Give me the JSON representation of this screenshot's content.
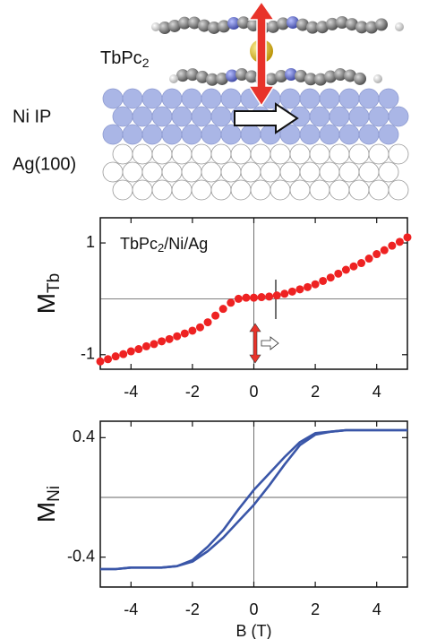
{
  "schematic": {
    "molecule_label": {
      "text": "TbPc",
      "subscript": "2"
    },
    "layer_labels": [
      "Ni IP",
      "Ag(100)"
    ]
  },
  "chart_data": [
    {
      "type": "scatter",
      "annotation": {
        "text": "TbPc",
        "subscript": "2",
        "suffix": "/Ni/Ag"
      },
      "y_label": "M",
      "y_label_subscript": "Tb",
      "color": "#ee2222",
      "x": [
        -5,
        -4.75,
        -4.5,
        -4.25,
        -4,
        -3.75,
        -3.5,
        -3.25,
        -3,
        -2.75,
        -2.5,
        -2.25,
        -2,
        -1.75,
        -1.5,
        -1.25,
        -1,
        -0.75,
        -0.5,
        -0.25,
        0,
        0.25,
        0.5,
        0.75,
        1,
        1.25,
        1.5,
        1.75,
        2,
        2.25,
        2.5,
        2.75,
        3,
        3.25,
        3.5,
        3.75,
        4,
        4.25,
        4.5,
        4.75,
        5
      ],
      "values": [
        -1.12,
        -1.08,
        -1.03,
        -0.99,
        -0.94,
        -0.9,
        -0.85,
        -0.81,
        -0.76,
        -0.72,
        -0.67,
        -0.62,
        -0.57,
        -0.51,
        -0.42,
        -0.3,
        -0.18,
        -0.07,
        0.0,
        0.02,
        0.02,
        0.03,
        0.04,
        0.06,
        0.09,
        0.13,
        0.17,
        0.21,
        0.26,
        0.32,
        0.38,
        0.45,
        0.52,
        0.58,
        0.64,
        0.72,
        0.8,
        0.87,
        0.95,
        1.02,
        1.1
      ],
      "xlim": [
        -5,
        5
      ],
      "ylim": [
        -1.26,
        1.45
      ],
      "xticks": [
        -4,
        -2,
        0,
        2,
        4
      ],
      "yticks": [
        -1,
        1
      ],
      "zero_lines": true
    },
    {
      "type": "line",
      "y_label": "M",
      "y_label_subscript": "Ni",
      "x_label": "B (T)",
      "x": [
        -5,
        -4.5,
        -4,
        -3.5,
        -3,
        -2.5,
        -2,
        -1.5,
        -1,
        -0.5,
        0,
        0.5,
        1,
        1.5,
        2,
        2.5,
        3,
        3.5,
        4,
        4.5,
        5
      ],
      "series": [
        {
          "color": "#3a56a8",
          "values": [
            -0.48,
            -0.48,
            -0.47,
            -0.47,
            -0.47,
            -0.46,
            -0.43,
            -0.36,
            -0.27,
            -0.16,
            -0.05,
            0.08,
            0.22,
            0.35,
            0.42,
            0.44,
            0.45,
            0.45,
            0.45,
            0.45,
            0.45
          ]
        },
        {
          "color": "#3a56a8",
          "values": [
            -0.48,
            -0.48,
            -0.47,
            -0.47,
            -0.47,
            -0.46,
            -0.42,
            -0.33,
            -0.22,
            -0.08,
            0.05,
            0.16,
            0.27,
            0.37,
            0.43,
            0.44,
            0.45,
            0.45,
            0.45,
            0.45,
            0.45
          ]
        }
      ],
      "xlim": [
        -5,
        5
      ],
      "ylim": [
        -0.6,
        0.51
      ],
      "xticks": [
        -4,
        -2,
        0,
        2,
        4
      ],
      "yticks": [
        -0.4,
        0.4
      ],
      "zero_lines": true
    }
  ]
}
